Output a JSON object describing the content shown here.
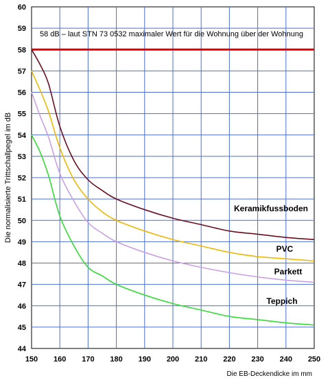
{
  "chart_data": {
    "type": "line",
    "title": "",
    "xlabel": "Die EB-Deckendicke im mm",
    "ylabel": "Die normalisierte Trittschallpegel im dB",
    "xlim": [
      150,
      250
    ],
    "ylim": [
      44,
      60
    ],
    "x_ticks": [
      150,
      160,
      170,
      180,
      190,
      200,
      210,
      220,
      230,
      240,
      250
    ],
    "y_ticks": [
      44,
      45,
      46,
      47,
      48,
      49,
      50,
      51,
      52,
      53,
      54,
      55,
      56,
      57,
      58,
      59,
      60
    ],
    "grid": true,
    "reference_line": {
      "value": 58,
      "color": "#e00000",
      "label": "58 dB – laut STN  73 0532 maximaler Wert für die Wohnung über der  Wohnung"
    },
    "series": [
      {
        "name": "Keramikfussboden",
        "color": "#6b0d1e",
        "x": [
          150,
          153,
          156,
          160,
          165,
          170,
          175,
          180,
          190,
          200,
          210,
          220,
          230,
          240,
          250
        ],
        "y": [
          58,
          57.3,
          56.4,
          54.4,
          52.8,
          51.9,
          51.4,
          51.0,
          50.5,
          50.1,
          49.8,
          49.5,
          49.35,
          49.2,
          49.1
        ]
      },
      {
        "name": "PVC",
        "color": "#f2b705",
        "x": [
          150,
          153,
          156,
          160,
          165,
          170,
          175,
          180,
          190,
          200,
          210,
          220,
          230,
          240,
          250
        ],
        "y": [
          57,
          56.1,
          55.1,
          53.4,
          51.9,
          51.0,
          50.4,
          50.0,
          49.5,
          49.1,
          48.8,
          48.5,
          48.3,
          48.2,
          48.1
        ]
      },
      {
        "name": "Parkett",
        "color": "#c9a0e6",
        "x": [
          150,
          153,
          156,
          160,
          165,
          170,
          175,
          180,
          190,
          200,
          210,
          220,
          230,
          240,
          250
        ],
        "y": [
          56,
          54.9,
          53.9,
          52.2,
          50.9,
          49.9,
          49.4,
          49.0,
          48.5,
          48.1,
          47.8,
          47.55,
          47.35,
          47.2,
          47.1
        ]
      },
      {
        "name": "Teppich",
        "color": "#33dd33",
        "x": [
          150,
          153,
          156,
          160,
          165,
          170,
          175,
          180,
          190,
          200,
          210,
          220,
          230,
          240,
          250
        ],
        "y": [
          54,
          53.2,
          52.1,
          50.2,
          48.8,
          47.8,
          47.4,
          47.0,
          46.5,
          46.1,
          45.8,
          45.5,
          45.35,
          45.2,
          45.1
        ]
      }
    ]
  }
}
